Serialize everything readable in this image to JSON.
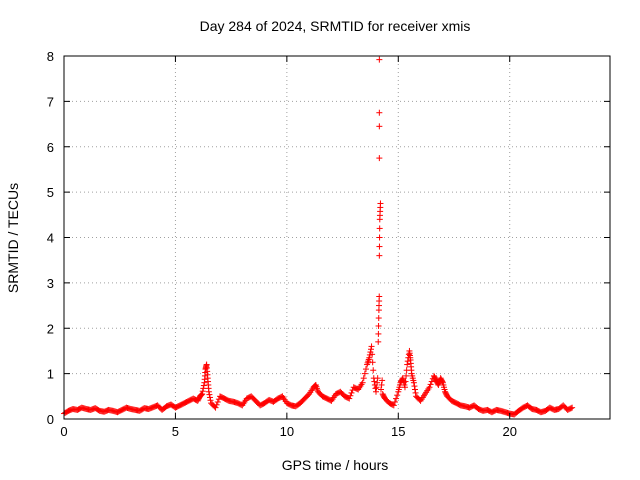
{
  "chart_data": {
    "type": "scatter",
    "title": "Day 284 of 2024, SRMTID for receiver xmis",
    "xlabel": "GPS time / hours",
    "ylabel": "SRMTID / TECUs",
    "xlim": [
      0,
      24.5
    ],
    "ylim": [
      0,
      8
    ],
    "xticks": [
      0,
      5,
      10,
      15,
      20
    ],
    "yticks": [
      0,
      1,
      2,
      3,
      4,
      5,
      6,
      7,
      8
    ],
    "grid": true,
    "marker": "+",
    "color": "#ff0000",
    "series": [
      {
        "name": "SRMTID",
        "x": [
          0.0,
          0.2,
          0.4,
          0.6,
          0.8,
          1.0,
          1.2,
          1.4,
          1.6,
          1.8,
          2.0,
          2.2,
          2.4,
          2.6,
          2.8,
          3.0,
          3.2,
          3.4,
          3.6,
          3.8,
          4.0,
          4.2,
          4.4,
          4.6,
          4.8,
          5.0,
          5.2,
          5.4,
          5.6,
          5.8,
          6.0,
          6.1,
          6.2,
          6.3,
          6.35,
          6.4,
          6.45,
          6.5,
          6.6,
          6.8,
          7.0,
          7.2,
          7.4,
          7.6,
          7.8,
          8.0,
          8.2,
          8.4,
          8.6,
          8.8,
          9.0,
          9.2,
          9.4,
          9.6,
          9.8,
          10.0,
          10.2,
          10.4,
          10.6,
          10.8,
          11.0,
          11.2,
          11.3,
          11.4,
          11.6,
          11.8,
          12.0,
          12.2,
          12.4,
          12.6,
          12.8,
          13.0,
          13.2,
          13.4,
          13.6,
          13.7,
          13.8,
          13.9,
          14.0,
          14.1,
          14.13,
          14.15,
          14.17,
          14.2,
          14.3,
          14.4,
          14.6,
          14.8,
          15.0,
          15.1,
          15.2,
          15.3,
          15.4,
          15.5,
          15.55,
          15.6,
          15.7,
          15.8,
          16.0,
          16.2,
          16.4,
          16.6,
          16.7,
          16.8,
          16.9,
          17.0,
          17.1,
          17.2,
          17.4,
          17.6,
          17.8,
          18.0,
          18.2,
          18.4,
          18.6,
          18.8,
          19.0,
          19.2,
          19.4,
          19.6,
          19.8,
          20.0,
          20.2,
          20.4,
          20.6,
          20.8,
          21.0,
          21.2,
          21.4,
          21.6,
          21.8,
          22.0,
          22.2,
          22.4,
          22.6,
          22.8
        ],
        "y": [
          0.12,
          0.18,
          0.22,
          0.2,
          0.25,
          0.22,
          0.2,
          0.24,
          0.18,
          0.16,
          0.2,
          0.18,
          0.15,
          0.2,
          0.25,
          0.22,
          0.2,
          0.18,
          0.24,
          0.22,
          0.26,
          0.3,
          0.2,
          0.28,
          0.32,
          0.25,
          0.3,
          0.35,
          0.4,
          0.45,
          0.4,
          0.5,
          0.55,
          0.8,
          1.1,
          1.2,
          0.9,
          0.6,
          0.35,
          0.25,
          0.5,
          0.45,
          0.4,
          0.38,
          0.35,
          0.3,
          0.45,
          0.5,
          0.4,
          0.3,
          0.35,
          0.42,
          0.38,
          0.45,
          0.5,
          0.35,
          0.3,
          0.28,
          0.35,
          0.45,
          0.55,
          0.7,
          0.75,
          0.6,
          0.5,
          0.45,
          0.4,
          0.55,
          0.6,
          0.5,
          0.45,
          0.7,
          0.65,
          0.8,
          1.2,
          1.35,
          1.6,
          0.9,
          0.6,
          1.7,
          2.4,
          3.6,
          4.4,
          4.75,
          0.55,
          0.45,
          0.35,
          0.3,
          0.6,
          0.8,
          0.9,
          0.7,
          1.2,
          1.5,
          1.3,
          1.0,
          0.8,
          0.5,
          0.4,
          0.55,
          0.7,
          0.95,
          0.85,
          0.75,
          0.9,
          0.8,
          0.6,
          0.5,
          0.4,
          0.35,
          0.3,
          0.28,
          0.25,
          0.3,
          0.22,
          0.18,
          0.2,
          0.15,
          0.2,
          0.18,
          0.15,
          0.12,
          0.1,
          0.18,
          0.25,
          0.3,
          0.22,
          0.2,
          0.15,
          0.18,
          0.25,
          0.2,
          0.22,
          0.3,
          0.2,
          0.25
        ],
        "outliers_x": [
          14.15,
          14.15,
          14.15,
          14.15
        ],
        "outliers_y": [
          5.75,
          6.45,
          6.75,
          7.92
        ]
      }
    ]
  }
}
